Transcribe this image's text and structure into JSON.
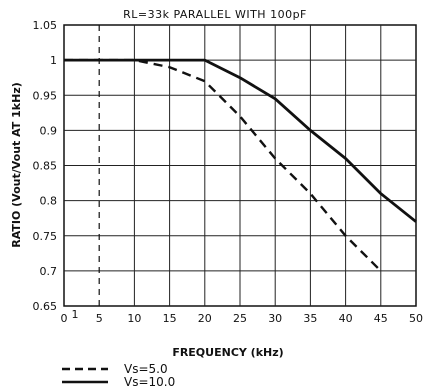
{
  "chart_data": {
    "type": "line",
    "title": "RL=33k PARALLEL WITH 100pF",
    "xlabel": "FREQUENCY (kHz)",
    "ylabel": "RATIO (Vout/Vout AT 1kHz)",
    "xlim": [
      0,
      50
    ],
    "ylim": [
      0.65,
      1.05
    ],
    "x_ticks": [
      "0",
      "5",
      "10",
      "15",
      "20",
      "25",
      "30",
      "35",
      "40",
      "45",
      "50"
    ],
    "x_tick_values": [
      0,
      5,
      10,
      15,
      20,
      25,
      30,
      35,
      40,
      45,
      50
    ],
    "extra_x_tick": {
      "label": "1",
      "value": 1
    },
    "y_ticks": [
      "0.65",
      "0.7",
      "0.75",
      "0.8",
      "0.85",
      "0.9",
      "0.95",
      "1",
      "1.05"
    ],
    "y_tick_values": [
      0.65,
      0.7,
      0.75,
      0.8,
      0.85,
      0.9,
      0.95,
      1.0,
      1.05
    ],
    "grid": true,
    "reference_line_x": 5,
    "legend_position": "bottom-left",
    "series": [
      {
        "name": "Vs=5.0",
        "style": "dashed",
        "x": [
          0,
          10,
          15,
          20,
          25,
          30,
          35,
          40,
          45
        ],
        "y": [
          1.0,
          1.0,
          0.99,
          0.97,
          0.92,
          0.86,
          0.81,
          0.75,
          0.7
        ]
      },
      {
        "name": "Vs=10.0",
        "style": "solid",
        "x": [
          0,
          10,
          20,
          25,
          30,
          35,
          40,
          45,
          50
        ],
        "y": [
          1.0,
          1.0,
          1.0,
          0.975,
          0.945,
          0.9,
          0.86,
          0.81,
          0.77
        ]
      }
    ]
  }
}
